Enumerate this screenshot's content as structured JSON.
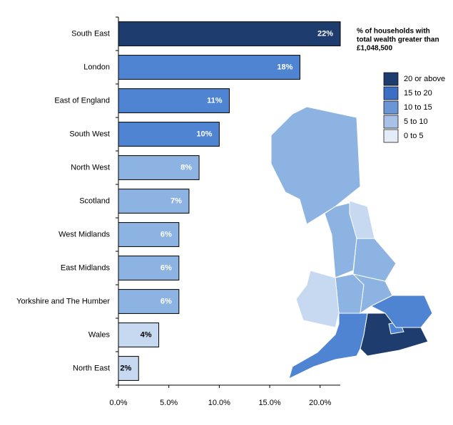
{
  "chart_data": {
    "type": "bar",
    "orientation": "horizontal",
    "categories": [
      "South East",
      "London",
      "East of England",
      "South West",
      "North West",
      "Scotland",
      "West Midlands",
      "East Midlands",
      "Yorkshire and The Humber",
      "Wales",
      "North East"
    ],
    "values": [
      22,
      18,
      11,
      10,
      8,
      7,
      6,
      6,
      6,
      4,
      2
    ],
    "value_labels": [
      "22%",
      "18%",
      "11%",
      "10%",
      "8%",
      "7%",
      "6%",
      "6%",
      "6%",
      "4%",
      "2%"
    ],
    "colors": [
      "#1f3c6e",
      "#4f84d3",
      "#4f84d3",
      "#4f84d3",
      "#8db3e2",
      "#8db3e2",
      "#8db3e2",
      "#8db3e2",
      "#8db3e2",
      "#c6d9f1",
      "#c6d9f1"
    ],
    "xlim": [
      0,
      22
    ],
    "xticks": [
      {
        "value": 0,
        "label": "0.0%"
      },
      {
        "value": 5,
        "label": "5.0%"
      },
      {
        "value": 10,
        "label": "10.0%"
      },
      {
        "value": 15,
        "label": "15.0%"
      },
      {
        "value": 20,
        "label": "20.0%"
      }
    ],
    "legend": {
      "title": [
        "% of households with",
        "total wealth greater than",
        "£1,048,500"
      ],
      "items": [
        {
          "name": "20 or above",
          "color": "#1f3c6e"
        },
        {
          "name": "15 to 20",
          "color": "#3a6fc4"
        },
        {
          "name": "10 to 15",
          "color": "#6b96d6"
        },
        {
          "name": "5 to 10",
          "color": "#a9c1e6"
        },
        {
          "name": "0 to 5",
          "color": "#e4ecf7"
        }
      ]
    }
  }
}
